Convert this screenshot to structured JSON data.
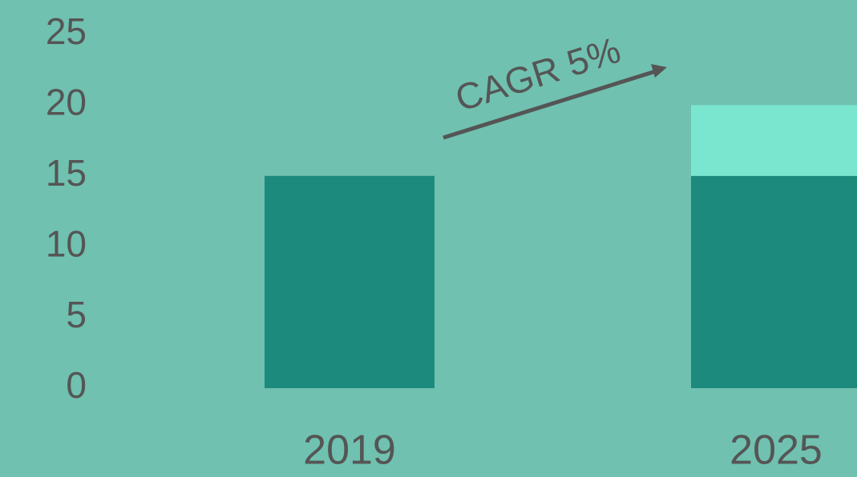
{
  "chart_data": {
    "type": "stacked_bar",
    "categories": [
      "2019",
      "2025"
    ],
    "series": [
      {
        "color": "#1c8a7c",
        "values": [
          15,
          15
        ]
      },
      {
        "color": "#7be6cf",
        "values": [
          null,
          5
        ]
      }
    ],
    "ylim": [
      0,
      25
    ],
    "yticks": [
      0,
      5,
      10,
      15,
      20,
      25
    ],
    "annotation": "CAGR 5%",
    "background": "#70c1b0"
  }
}
